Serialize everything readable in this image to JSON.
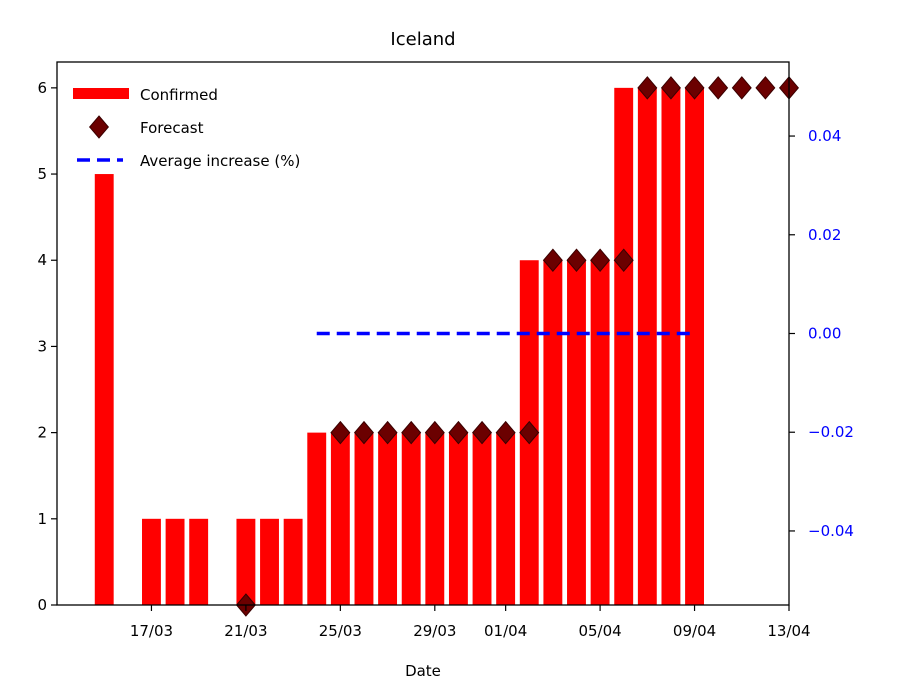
{
  "chart_data": {
    "type": "bar",
    "title": "Iceland",
    "xlabel": "Date",
    "ylabel": "",
    "ylim": [
      0,
      6.3
    ],
    "y_ticks": [
      0,
      1,
      2,
      3,
      4,
      5,
      6
    ],
    "y2lim": [
      -0.055,
      0.055
    ],
    "y2_ticks": [
      -0.04,
      -0.02,
      0.0,
      0.02,
      0.04
    ],
    "y2_tick_labels": [
      "−0.04",
      "−0.02",
      "0.00",
      "0.02",
      "0.04"
    ],
    "x_ticks": [
      "2020-03-17",
      "2020-03-21",
      "2020-03-25",
      "2020-03-29",
      "2020-04-01",
      "2020-04-05",
      "2020-04-09",
      "2020-04-13"
    ],
    "x_tick_labels": [
      "17/03",
      "21/03",
      "25/03",
      "29/03",
      "01/04",
      "05/04",
      "09/04",
      "13/04"
    ],
    "xlim": [
      "2020-03-13",
      "2020-04-13"
    ],
    "legend": {
      "position": "top-left",
      "entries": [
        "Confirmed",
        "Forecast",
        "Average increase (%)"
      ]
    },
    "grid": false,
    "series": [
      {
        "name": "Confirmed",
        "type": "bar",
        "color": "#ff0000",
        "x": [
          "2020-03-15",
          "2020-03-16",
          "2020-03-17",
          "2020-03-18",
          "2020-03-19",
          "2020-03-20",
          "2020-03-21",
          "2020-03-22",
          "2020-03-23",
          "2020-03-24",
          "2020-03-25",
          "2020-03-26",
          "2020-03-27",
          "2020-03-28",
          "2020-03-29",
          "2020-03-30",
          "2020-03-31",
          "2020-04-01",
          "2020-04-02",
          "2020-04-03",
          "2020-04-04",
          "2020-04-05",
          "2020-04-06",
          "2020-04-07",
          "2020-04-08",
          "2020-04-09"
        ],
        "values": [
          5,
          0,
          1,
          1,
          1,
          0,
          1,
          1,
          1,
          2,
          2,
          2,
          2,
          2,
          2,
          2,
          2,
          2,
          4,
          4,
          4,
          4,
          6,
          6,
          6,
          6
        ]
      },
      {
        "name": "Forecast",
        "type": "scatter",
        "marker": "diamond",
        "color": "#6b0000",
        "x": [
          "2020-03-21",
          "2020-03-25",
          "2020-03-26",
          "2020-03-27",
          "2020-03-28",
          "2020-03-29",
          "2020-03-30",
          "2020-03-31",
          "2020-04-01",
          "2020-04-02",
          "2020-04-03",
          "2020-04-04",
          "2020-04-05",
          "2020-04-06",
          "2020-04-07",
          "2020-04-08",
          "2020-04-09",
          "2020-04-10",
          "2020-04-11",
          "2020-04-12",
          "2020-04-13"
        ],
        "values": [
          0,
          2,
          2,
          2,
          2,
          2,
          2,
          2,
          2,
          2,
          4,
          4,
          4,
          4,
          6,
          6,
          6,
          6,
          6,
          6,
          6
        ]
      },
      {
        "name": "Average increase (%)",
        "type": "line",
        "style": "dashed",
        "color": "#0000ff",
        "axis": "right",
        "x": [
          "2020-03-24",
          "2020-04-09"
        ],
        "values": [
          0.0,
          0.0
        ]
      }
    ]
  }
}
